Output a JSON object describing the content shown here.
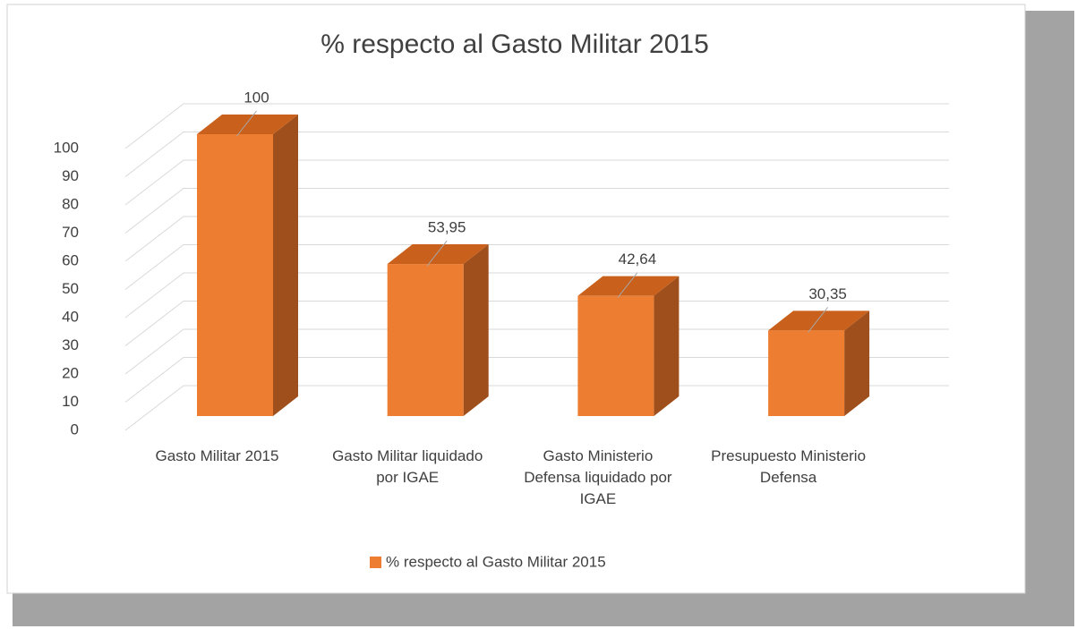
{
  "chart_data": {
    "type": "bar3d",
    "title": "% respecto al Gasto Militar 2015",
    "categories": [
      "Gasto Militar 2015",
      "Gasto Militar liquidado por IGAE",
      "Gasto Ministerio Defensa liquidado por IGAE",
      "Presupuesto Ministerio Defensa"
    ],
    "series": [
      {
        "name": "% respecto al Gasto Militar 2015",
        "color": "#ed7d31",
        "values": [
          100,
          53.95,
          42.64,
          30.35
        ],
        "value_labels": [
          "100",
          "53,95",
          "42,64",
          "30,35"
        ]
      }
    ],
    "ylim": [
      0,
      100
    ],
    "yticks": [
      0,
      10,
      20,
      30,
      40,
      50,
      60,
      70,
      80,
      90,
      100
    ],
    "grid": true,
    "legend": "bottom"
  }
}
